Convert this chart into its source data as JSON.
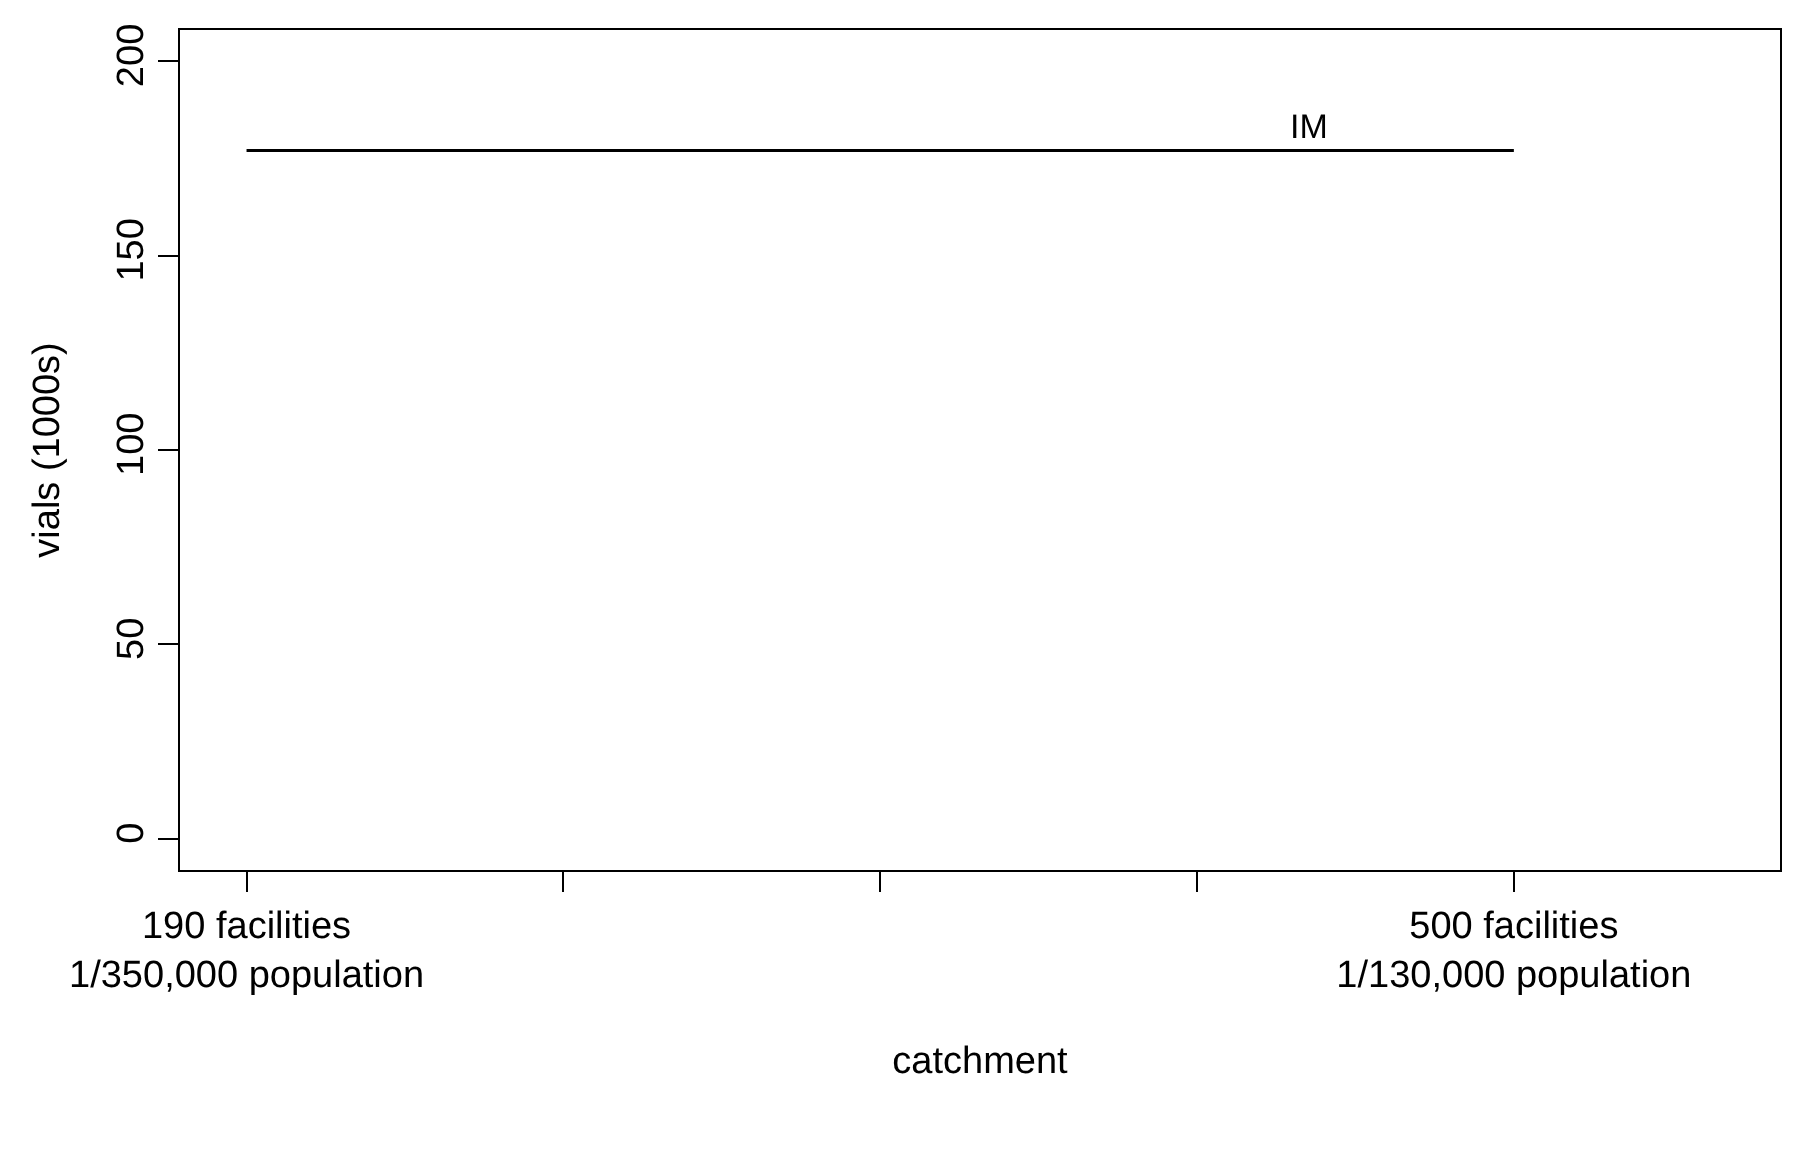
{
  "chart_data": {
    "type": "line",
    "xlabel": "catchment",
    "ylabel": "vials (1000s)",
    "categories": [
      "190 facilities\n1/350,000 population",
      null,
      null,
      null,
      "500 facilities\n1/130,000 population"
    ],
    "series": [
      {
        "color": "#000000",
        "values": [
          177,
          177,
          177,
          177,
          177
        ]
      }
    ],
    "ylim": [
      -8,
      208
    ],
    "yticks": [
      0,
      50,
      100,
      150,
      200
    ],
    "annotations": [
      {
        "text": "IM",
        "y": 177
      }
    ]
  }
}
